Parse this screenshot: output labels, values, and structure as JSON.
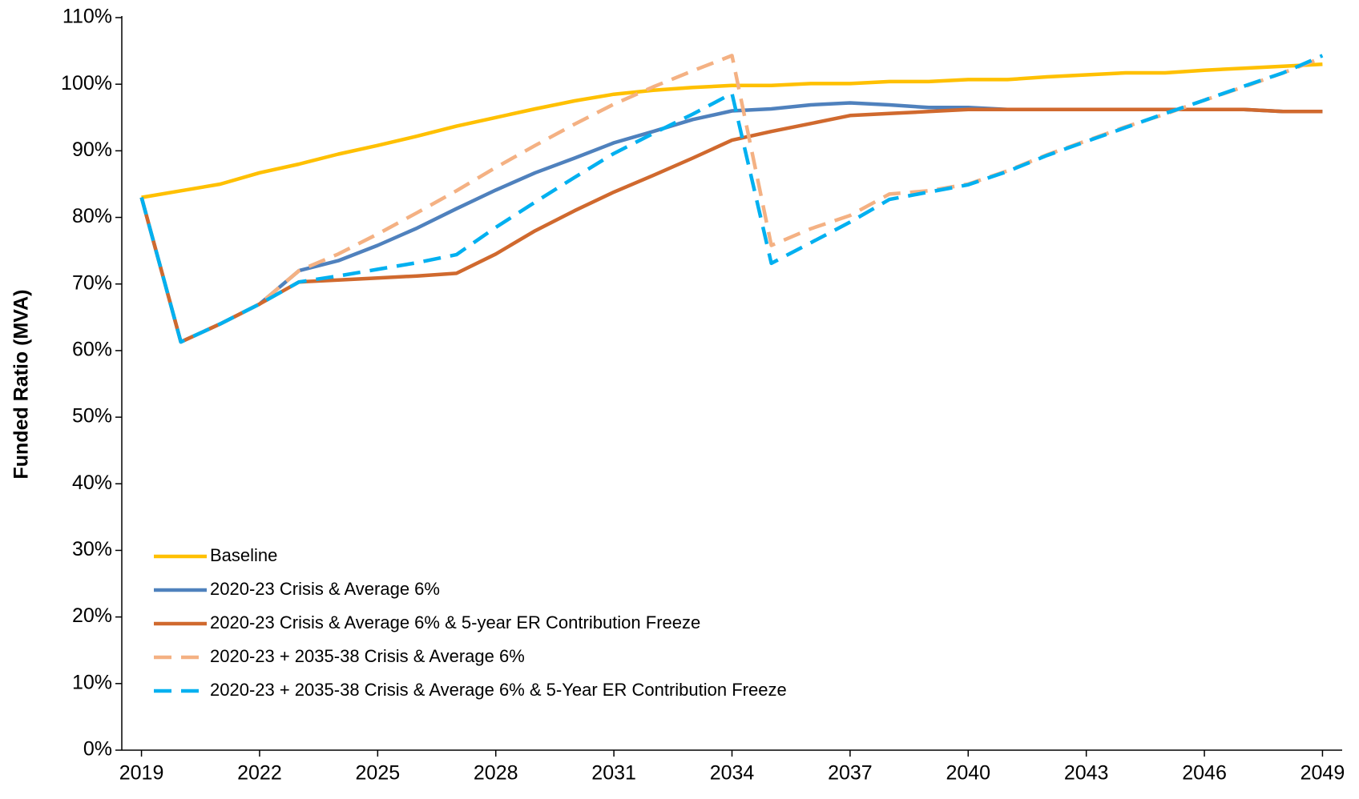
{
  "chart_data": {
    "type": "line",
    "y_label": "Funded Ratio (MVA)",
    "x": [
      2019,
      2020,
      2021,
      2022,
      2023,
      2024,
      2025,
      2026,
      2027,
      2028,
      2029,
      2030,
      2031,
      2032,
      2033,
      2034,
      2035,
      2036,
      2037,
      2038,
      2039,
      2040,
      2041,
      2042,
      2043,
      2044,
      2045,
      2046,
      2047,
      2048,
      2049
    ],
    "xlim": [
      2018.5,
      2049.5
    ],
    "xticks": [
      2019,
      2022,
      2025,
      2028,
      2031,
      2034,
      2037,
      2040,
      2043,
      2046,
      2049
    ],
    "ylim": [
      0,
      110
    ],
    "yticks": [
      {
        "value": 0,
        "label": "0%"
      },
      {
        "value": 10,
        "label": "10%"
      },
      {
        "value": 20,
        "label": "20%"
      },
      {
        "value": 30,
        "label": "30%"
      },
      {
        "value": 40,
        "label": "40%"
      },
      {
        "value": 50,
        "label": "50%"
      },
      {
        "value": 60,
        "label": "60%"
      },
      {
        "value": 70,
        "label": "70%"
      },
      {
        "value": 80,
        "label": "80%"
      },
      {
        "value": 90,
        "label": "90%"
      },
      {
        "value": 100,
        "label": "100%"
      },
      {
        "value": 110,
        "label": "110%"
      }
    ],
    "legend": "lower left",
    "series": [
      {
        "name": "Baseline",
        "color": "#ffc000",
        "dashed": false,
        "values": [
          83,
          84,
          85,
          86.7,
          88,
          89.5,
          90.8,
          92.2,
          93.7,
          95,
          96.3,
          97.5,
          98.5,
          99.1,
          99.5,
          99.8,
          99.8,
          100.1,
          100.1,
          100.4,
          100.4,
          100.7,
          100.7,
          101.1,
          101.4,
          101.7,
          101.7,
          102.1,
          102.4,
          102.7,
          103
        ]
      },
      {
        "name": "2020-23 Crisis & Average 6%",
        "color": "#4f81bd",
        "dashed": false,
        "values": [
          83,
          61.3,
          64,
          67,
          72,
          73.5,
          75.8,
          78.4,
          81.3,
          84.1,
          86.7,
          88.9,
          91.2,
          92.9,
          94.7,
          96,
          96.3,
          96.9,
          97.2,
          96.9,
          96.5,
          96.5,
          96.2,
          96.2,
          96.2,
          96.2,
          96.2,
          96.2,
          96.2,
          95.9,
          95.9
        ]
      },
      {
        "name": "2020-23 Crisis & Average 6% & 5-year ER Contribution Freeze",
        "color": "#d0692e",
        "dashed": false,
        "values": [
          83,
          61.3,
          64,
          67,
          70.3,
          70.6,
          70.9,
          71.2,
          71.6,
          74.5,
          78,
          81,
          83.8,
          86.3,
          88.9,
          91.6,
          92.9,
          94.1,
          95.3,
          95.6,
          95.9,
          96.2,
          96.2,
          96.2,
          96.2,
          96.2,
          96.2,
          96.2,
          96.2,
          95.9,
          95.9
        ]
      },
      {
        "name": "2020-23 + 2035-38 Crisis & Average 6%",
        "color": "#f4b183",
        "dashed": true,
        "values": [
          83,
          61.3,
          64,
          67,
          72,
          74.5,
          77.5,
          80.7,
          84,
          87.5,
          90.8,
          94,
          97,
          99.6,
          102,
          104.3,
          75.8,
          78.3,
          80.3,
          83.5,
          84,
          85,
          87,
          89.4,
          91.5,
          93.6,
          95.5,
          97.6,
          99.6,
          101.7,
          104
        ]
      },
      {
        "name": "2020-23 + 2035-38 Crisis & Average 6% & 5-Year ER Contribution Freeze",
        "color": "#00b0f0",
        "dashed": true,
        "values": [
          83,
          61.3,
          64,
          67,
          70.3,
          71.2,
          72.2,
          73.2,
          74.4,
          78.5,
          82.3,
          86,
          89.6,
          92.6,
          95.5,
          98.6,
          73.1,
          76.2,
          79.3,
          82.7,
          83.8,
          84.9,
          86.9,
          89.3,
          91.4,
          93.5,
          95.6,
          97.6,
          99.7,
          101.7,
          104.3
        ]
      }
    ]
  }
}
